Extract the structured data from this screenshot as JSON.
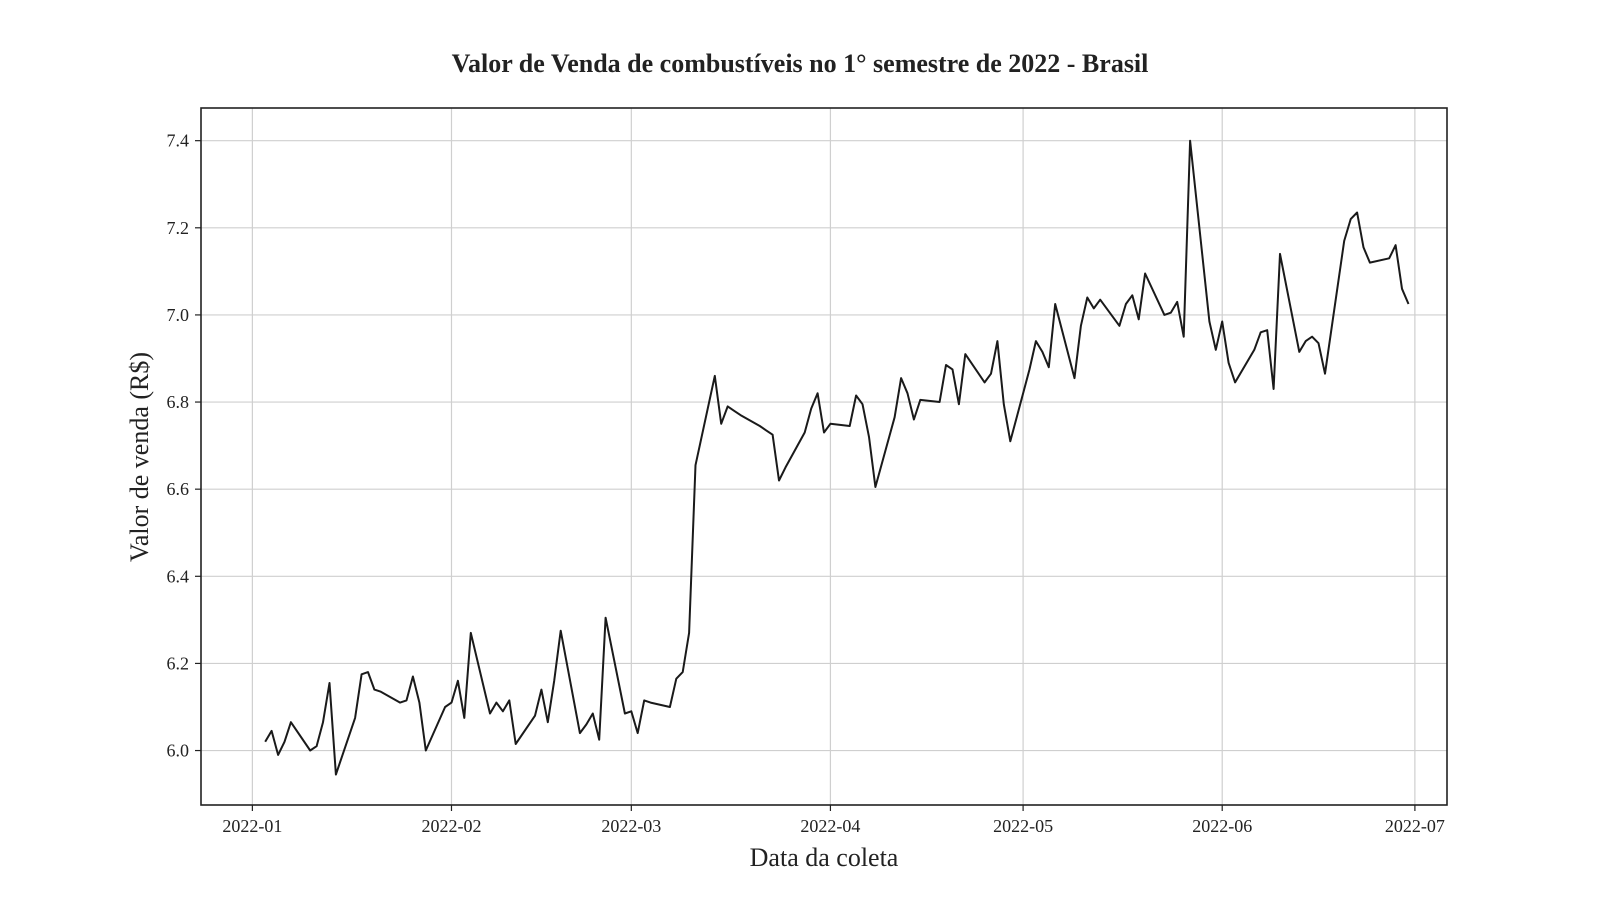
{
  "chart_data": {
    "type": "line",
    "title": "Valor de Venda de combustíveis no 1° semestre de 2022 - Brasil",
    "xlabel": "Data da coleta",
    "ylabel": "Valor de venda (R$)",
    "x_ticks": [
      "2022-01",
      "2022-02",
      "2022-03",
      "2022-04",
      "2022-05",
      "2022-06",
      "2022-07"
    ],
    "y_ticks": [
      "6.0",
      "6.2",
      "6.4",
      "6.6",
      "6.8",
      "7.0",
      "7.2",
      "7.4"
    ],
    "xlim": [
      "2021-12-24",
      "2022-07-06"
    ],
    "ylim": [
      5.875,
      7.475
    ],
    "grid": true,
    "line_color": "#1a1a1a",
    "series": [
      {
        "x": [
          "2022-01-03",
          "2022-01-04",
          "2022-01-05",
          "2022-01-06",
          "2022-01-07",
          "2022-01-10",
          "2022-01-11",
          "2022-01-12",
          "2022-01-13",
          "2022-01-14",
          "2022-01-17",
          "2022-01-18",
          "2022-01-19",
          "2022-01-20",
          "2022-01-21",
          "2022-01-24",
          "2022-01-25",
          "2022-01-26",
          "2022-01-27",
          "2022-01-28",
          "2022-01-31",
          "2022-02-01",
          "2022-02-02",
          "2022-02-03",
          "2022-02-04",
          "2022-02-07",
          "2022-02-08",
          "2022-02-09",
          "2022-02-10",
          "2022-02-11",
          "2022-02-14",
          "2022-02-15",
          "2022-02-16",
          "2022-02-17",
          "2022-02-18",
          "2022-02-21",
          "2022-02-22",
          "2022-02-23",
          "2022-02-24",
          "2022-02-25",
          "2022-02-28",
          "2022-03-01",
          "2022-03-02",
          "2022-03-03",
          "2022-03-04",
          "2022-03-07",
          "2022-03-08",
          "2022-03-09",
          "2022-03-10",
          "2022-03-11",
          "2022-03-14",
          "2022-03-15",
          "2022-03-16",
          "2022-03-17",
          "2022-03-18",
          "2022-03-21",
          "2022-03-22",
          "2022-03-23",
          "2022-03-24",
          "2022-03-25",
          "2022-03-28",
          "2022-03-29",
          "2022-03-30",
          "2022-03-31",
          "2022-04-01",
          "2022-04-04",
          "2022-04-05",
          "2022-04-06",
          "2022-04-07",
          "2022-04-08",
          "2022-04-11",
          "2022-04-12",
          "2022-04-13",
          "2022-04-14",
          "2022-04-15",
          "2022-04-18",
          "2022-04-19",
          "2022-04-20",
          "2022-04-21",
          "2022-04-22",
          "2022-04-25",
          "2022-04-26",
          "2022-04-27",
          "2022-04-28",
          "2022-04-29",
          "2022-05-02",
          "2022-05-03",
          "2022-05-04",
          "2022-05-05",
          "2022-05-06",
          "2022-05-09",
          "2022-05-10",
          "2022-05-11",
          "2022-05-12",
          "2022-05-13",
          "2022-05-16",
          "2022-05-17",
          "2022-05-18",
          "2022-05-19",
          "2022-05-20",
          "2022-05-23",
          "2022-05-24",
          "2022-05-25",
          "2022-05-26",
          "2022-05-27",
          "2022-05-30",
          "2022-05-31",
          "2022-06-01",
          "2022-06-02",
          "2022-06-03",
          "2022-06-06",
          "2022-06-07",
          "2022-06-08",
          "2022-06-09",
          "2022-06-10",
          "2022-06-13",
          "2022-06-14",
          "2022-06-15",
          "2022-06-16",
          "2022-06-17",
          "2022-06-20",
          "2022-06-21",
          "2022-06-22",
          "2022-06-23",
          "2022-06-24",
          "2022-06-27",
          "2022-06-28",
          "2022-06-29",
          "2022-06-30"
        ],
        "y": [
          6.02,
          6.045,
          5.99,
          6.02,
          6.065,
          6.0,
          6.01,
          6.065,
          6.155,
          5.945,
          6.075,
          6.175,
          6.18,
          6.14,
          6.135,
          6.11,
          6.115,
          6.17,
          6.11,
          6.0,
          6.1,
          6.11,
          6.16,
          6.075,
          6.27,
          6.085,
          6.11,
          6.09,
          6.115,
          6.015,
          6.08,
          6.14,
          6.065,
          6.16,
          6.275,
          6.04,
          6.06,
          6.085,
          6.025,
          6.305,
          6.085,
          6.09,
          6.04,
          6.115,
          6.11,
          6.1,
          6.165,
          6.18,
          6.27,
          6.655,
          6.86,
          6.75,
          6.79,
          6.78,
          6.77,
          6.745,
          6.735,
          6.725,
          6.62,
          6.65,
          6.73,
          6.785,
          6.82,
          6.73,
          6.75,
          6.745,
          6.815,
          6.795,
          6.72,
          6.605,
          6.765,
          6.855,
          6.82,
          6.76,
          6.805,
          6.8,
          6.885,
          6.875,
          6.795,
          6.91,
          6.845,
          6.865,
          6.94,
          6.795,
          6.71,
          6.875,
          6.94,
          6.915,
          6.88,
          7.025,
          6.855,
          6.975,
          7.04,
          7.015,
          7.035,
          6.975,
          7.025,
          7.045,
          6.99,
          7.095,
          7.0,
          7.005,
          7.03,
          6.95,
          7.4,
          6.985,
          6.92,
          6.985,
          6.89,
          6.845,
          6.92,
          6.96,
          6.965,
          6.83,
          7.14,
          6.915,
          6.94,
          6.95,
          6.935,
          6.865,
          7.17,
          7.22,
          7.235,
          7.155,
          7.12,
          7.13,
          7.16,
          7.06,
          7.025
        ]
      }
    ]
  }
}
